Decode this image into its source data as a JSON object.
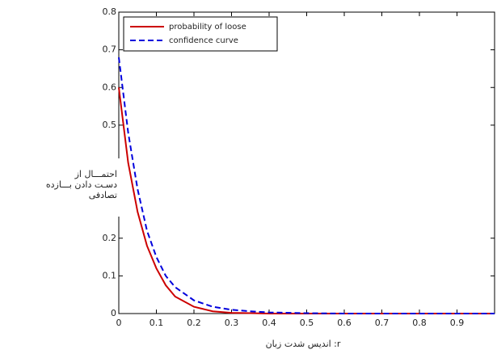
{
  "chart_data": {
    "type": "line",
    "xlabel": "r: اندیس شدت زبان",
    "ylabel_lines": [
      "احتمـــال از",
      "دسـت دادن بـــازده",
      "تصادفی"
    ],
    "x": [
      0,
      0.025,
      0.05,
      0.075,
      0.1,
      0.125,
      0.15,
      0.2,
      0.25,
      0.3,
      0.35,
      0.4,
      0.5,
      0.6,
      0.7,
      0.8,
      0.9,
      1.0
    ],
    "series": [
      {
        "name": "probability of loose",
        "color": "#cc0000",
        "dash": false,
        "values": [
          0.6,
          0.4,
          0.27,
          0.18,
          0.12,
          0.075,
          0.045,
          0.018,
          0.006,
          0.002,
          0.001,
          0,
          0,
          0,
          0,
          0,
          0,
          0
        ]
      },
      {
        "name": "confidence curve",
        "color": "#0000dd",
        "dash": true,
        "values": [
          0.68,
          0.48,
          0.33,
          0.22,
          0.15,
          0.1,
          0.07,
          0.035,
          0.018,
          0.01,
          0.006,
          0.003,
          0.001,
          0,
          0,
          0,
          0,
          0
        ]
      }
    ],
    "xlim": [
      0,
      1
    ],
    "ylim": [
      0,
      0.8
    ],
    "xticks": [
      0,
      0.1,
      0.2,
      0.3,
      0.4,
      0.5,
      0.6,
      0.7,
      0.8,
      0.9
    ],
    "yticks": [
      0,
      0.1,
      0.2,
      0.5,
      0.6,
      0.7,
      0.8
    ],
    "legend": "upper-left"
  }
}
